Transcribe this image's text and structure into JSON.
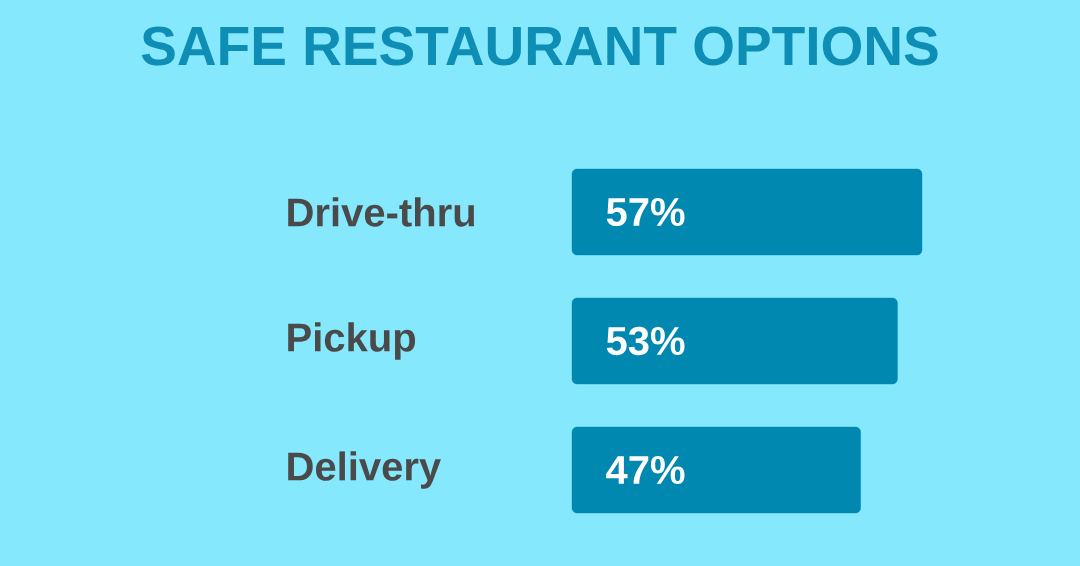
{
  "chart_data": {
    "type": "bar",
    "orientation": "horizontal",
    "title": "SAFE RESTAURANT OPTIONS",
    "categories": [
      "Drive-thru",
      "Pickup",
      "Delivery"
    ],
    "values": [
      57,
      53,
      47
    ],
    "value_labels": [
      "57%",
      "53%",
      "47%"
    ],
    "color": "#0088b0"
  }
}
